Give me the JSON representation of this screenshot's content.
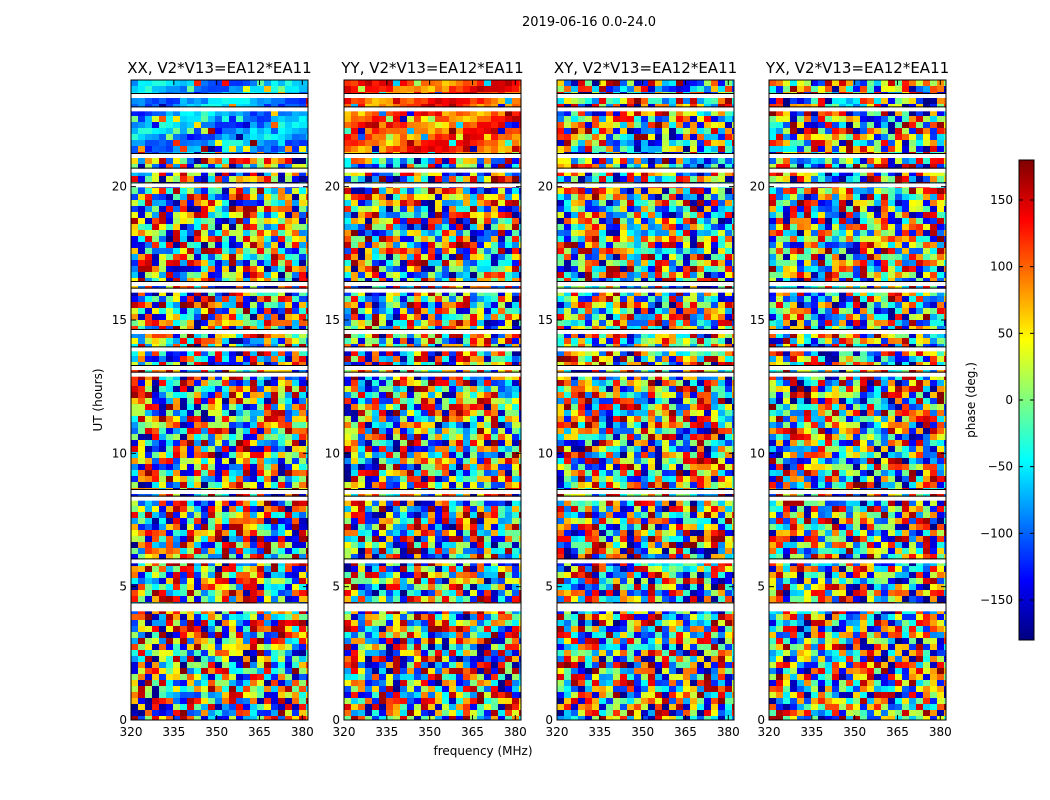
{
  "chart_data": {
    "type": "heatmap",
    "title": "2019-06-16 0.0-24.0",
    "xlabel": "frequency (MHz)",
    "ylabel": "UT (hours)",
    "xlim": [
      320,
      382
    ],
    "ylim": [
      0,
      24
    ],
    "x_ticks": [
      "320",
      "335",
      "350",
      "365",
      "380"
    ],
    "x_tick_values": [
      320,
      335,
      350,
      365,
      380
    ],
    "y_ticks": [
      "0",
      "5",
      "10",
      "15",
      "20"
    ],
    "y_tick_values": [
      0,
      5,
      10,
      15,
      20
    ],
    "panels": [
      {
        "title": "XX, V2*V13=EA12*EA11",
        "coherent_phase": -80,
        "coherent_hours": [
          21.0,
          24.0
        ]
      },
      {
        "title": "YY, V2*V13=EA12*EA11",
        "coherent_phase": 110,
        "coherent_hours": [
          21.0,
          24.0
        ]
      },
      {
        "title": "XY, V2*V13=EA12*EA11",
        "coherent_phase": null,
        "coherent_hours": null
      },
      {
        "title": "YX, V2*V13=EA12*EA11",
        "coherent_phase": null,
        "coherent_hours": null
      }
    ],
    "flagged_hours": [
      4.15,
      4.2,
      4.25,
      4.3,
      5.95,
      8.3,
      8.55,
      12.95,
      13.2,
      13.9,
      14.55,
      16.1,
      16.35,
      20.05,
      20.6,
      21.15,
      22.9,
      23.4
    ],
    "colorbar": {
      "label": "phase (deg.)",
      "vmin": -180,
      "vmax": 180,
      "ticks": [
        "150",
        "100",
        "50",
        "0",
        "−50",
        "−100",
        "−150"
      ],
      "tick_values": [
        150,
        100,
        50,
        0,
        -50,
        -100,
        -150
      ],
      "colormap": [
        "#00007f",
        "#0000ff",
        "#007fff",
        "#00ffff",
        "#7fff7f",
        "#ffff00",
        "#ff7f00",
        "#ff0000",
        "#7f0000"
      ]
    }
  }
}
